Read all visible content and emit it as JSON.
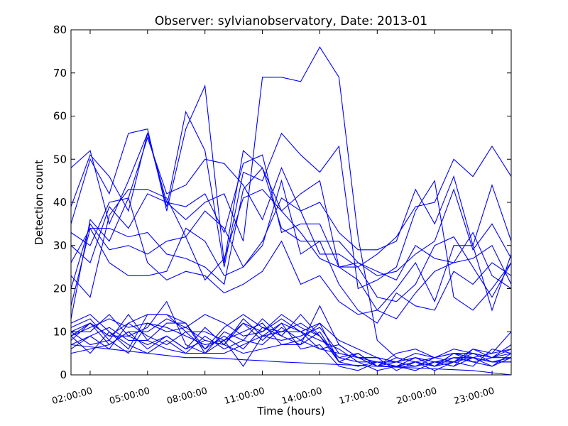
{
  "chart_data": {
    "type": "line",
    "title": "Observer: sylvianobservatory, Date: 2013-01",
    "xlabel": "Time (hours)",
    "ylabel": "Detection count",
    "x": [
      1,
      2,
      3,
      4,
      5,
      6,
      7,
      8,
      9,
      10,
      11,
      12,
      13,
      14,
      15,
      16,
      17,
      18,
      19,
      20,
      21,
      22,
      23,
      24
    ],
    "xlim": [
      1,
      24
    ],
    "ylim": [
      0,
      80
    ],
    "yticks": [
      0,
      10,
      20,
      30,
      40,
      50,
      60,
      70,
      80
    ],
    "xticks": [
      {
        "value": 2,
        "label": "02:00:00"
      },
      {
        "value": 5,
        "label": "05:00:00"
      },
      {
        "value": 8,
        "label": "08:00:00"
      },
      {
        "value": 11,
        "label": "11:00:00"
      },
      {
        "value": 14,
        "label": "14:00:00"
      },
      {
        "value": 17,
        "label": "17:00:00"
      },
      {
        "value": 20,
        "label": "20:00:00"
      },
      {
        "value": 23,
        "label": "23:00:00"
      }
    ],
    "grid": false,
    "line_color": "#0000ff",
    "series": [
      {
        "values": [
          48,
          52,
          35,
          45,
          56,
          40,
          36,
          40,
          42,
          31,
          69,
          69,
          68,
          76,
          69,
          32,
          8,
          4,
          3,
          4,
          6,
          5,
          4,
          5
        ]
      },
      {
        "values": [
          39,
          51,
          46,
          38,
          56,
          39,
          61,
          52,
          25,
          47,
          45,
          56,
          51,
          47,
          53,
          20,
          22,
          25,
          38,
          45,
          18,
          15,
          20,
          26
        ]
      },
      {
        "values": [
          35,
          50,
          42,
          56,
          57,
          38,
          57,
          67,
          26,
          52,
          48,
          38,
          42,
          45,
          25,
          25,
          28,
          32,
          39,
          40,
          50,
          46,
          53,
          46
        ]
      },
      {
        "values": [
          33,
          30,
          40,
          41,
          55,
          42,
          44,
          50,
          49,
          44,
          36,
          48,
          38,
          40,
          33,
          29,
          29,
          31,
          43,
          35,
          46,
          30,
          44,
          31
        ]
      },
      {
        "values": [
          30,
          26,
          39,
          34,
          42,
          40,
          39,
          42,
          33,
          49,
          51,
          33,
          35,
          35,
          25,
          26,
          23,
          24,
          28,
          31,
          43,
          29,
          35,
          27
        ]
      },
      {
        "values": [
          26,
          34,
          34,
          32,
          33,
          28,
          27,
          25,
          21,
          43,
          48,
          34,
          31,
          31,
          31,
          26,
          24,
          22,
          30,
          27,
          26,
          33,
          23,
          20
        ]
      },
      {
        "values": [
          23,
          18,
          37,
          43,
          43,
          41,
          32,
          38,
          34,
          25,
          31,
          41,
          38,
          28,
          28,
          25,
          18,
          17,
          21,
          30,
          32,
          25,
          18,
          26
        ]
      },
      {
        "values": [
          20,
          35,
          29,
          30,
          28,
          31,
          32,
          22,
          27,
          41,
          43,
          38,
          33,
          27,
          25,
          22,
          15,
          20,
          26,
          17,
          30,
          30,
          15,
          28
        ]
      },
      {
        "values": [
          16,
          34,
          26,
          23,
          23,
          24,
          34,
          31,
          23,
          25,
          30,
          45,
          28,
          31,
          21,
          15,
          12,
          19,
          16,
          15,
          24,
          21,
          26,
          23
        ]
      },
      {
        "values": [
          13,
          36,
          31,
          41,
          26,
          22,
          24,
          23,
          19,
          21,
          24,
          31,
          21,
          23,
          17,
          14,
          15,
          13,
          19,
          24,
          26,
          27,
          30,
          21
        ]
      },
      {
        "values": [
          12,
          14,
          10,
          6,
          14,
          14,
          10,
          10,
          8,
          10,
          12,
          7,
          7,
          16,
          7,
          4,
          2,
          5,
          6,
          4,
          5,
          4,
          3,
          4
        ]
      },
      {
        "values": [
          11,
          13,
          8,
          14,
          8,
          12,
          12,
          6,
          11,
          14,
          11,
          10,
          12,
          9,
          4,
          3,
          3,
          2,
          3,
          2,
          4,
          4,
          5,
          6
        ]
      },
      {
        "values": [
          10,
          12,
          9,
          9,
          11,
          17,
          7,
          5,
          10,
          8,
          13,
          9,
          14,
          9,
          3,
          5,
          2,
          3,
          4,
          3,
          2,
          6,
          5,
          10
        ]
      },
      {
        "values": [
          9,
          11,
          13,
          11,
          12,
          10,
          11,
          14,
          12,
          9,
          10,
          13,
          10,
          6,
          7,
          4,
          4,
          1,
          3,
          2,
          5,
          4,
          2,
          5
        ]
      },
      {
        "values": [
          10,
          10,
          14,
          9,
          7,
          9,
          6,
          11,
          7,
          13,
          9,
          8,
          9,
          11,
          5,
          4,
          3,
          2,
          1,
          3,
          4,
          3,
          4,
          4
        ]
      },
      {
        "values": [
          9,
          5,
          10,
          7,
          5,
          8,
          5,
          9,
          6,
          8,
          7,
          11,
          8,
          12,
          3,
          2,
          3,
          2,
          3,
          1,
          3,
          2,
          6,
          5
        ]
      },
      {
        "values": [
          8,
          12,
          7,
          10,
          10,
          13,
          11,
          8,
          7,
          12,
          8,
          12,
          10,
          8,
          6,
          3,
          1,
          2,
          2,
          4,
          3,
          5,
          3,
          3
        ]
      },
      {
        "values": [
          7,
          9,
          6,
          12,
          9,
          7,
          10,
          6,
          9,
          6,
          11,
          9,
          7,
          10,
          3,
          5,
          2,
          4,
          3,
          2,
          5,
          3,
          2,
          4
        ]
      },
      {
        "values": [
          6,
          9,
          11,
          8,
          8,
          6,
          5,
          5,
          5,
          7,
          9,
          12,
          6,
          7,
          2,
          1,
          3,
          3,
          2,
          3,
          2,
          4,
          3,
          3
        ]
      },
      {
        "values": [
          10,
          7,
          8,
          5,
          12,
          11,
          9,
          7,
          8,
          12,
          10,
          14,
          11,
          9,
          4,
          5,
          2,
          2,
          4,
          3,
          3,
          6,
          4,
          6
        ]
      },
      {
        "values": [
          5,
          6,
          7,
          10,
          6,
          9,
          6,
          8,
          7,
          5,
          6,
          7,
          8,
          6,
          5,
          4,
          4,
          3,
          4,
          2,
          3,
          4,
          3,
          4
        ]
      },
      {
        "values": [
          9,
          12,
          9,
          12,
          14,
          14,
          12,
          5,
          8,
          2,
          9,
          10,
          10,
          12,
          8,
          6,
          4,
          3,
          5,
          4,
          5,
          5,
          4,
          7
        ]
      },
      {
        "values": [
          7,
          6.5,
          6,
          5.5,
          5,
          4.5,
          4,
          4,
          3.8,
          3.5,
          3.3,
          3,
          2.8,
          2.6,
          2.4,
          2.2,
          2,
          1.8,
          1.6,
          1.4,
          1.2,
          1,
          0.5,
          0
        ]
      }
    ]
  }
}
